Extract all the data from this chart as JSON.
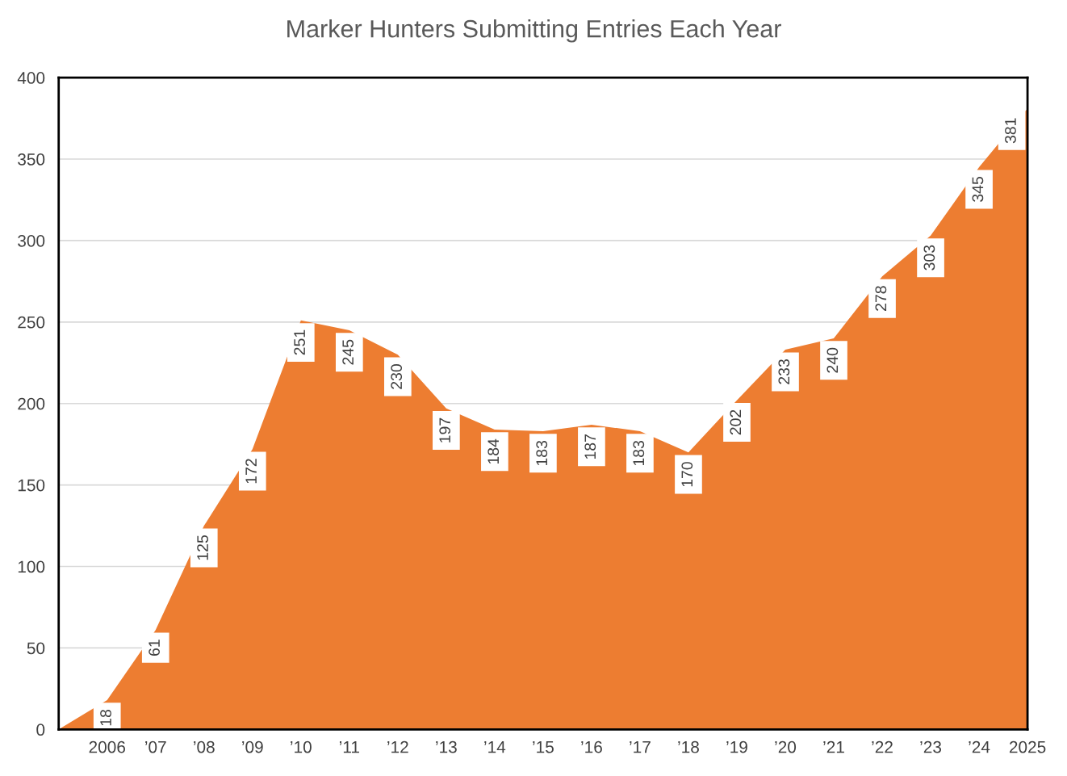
{
  "chart_data": {
    "type": "area",
    "title": "Marker Hunters Submitting Entries Each Year",
    "categories": [
      null,
      "2006",
      "’07",
      "’08",
      "’09",
      "’10",
      "’11",
      "’12",
      "’13",
      "’14",
      "’15",
      "’16",
      "’17",
      "’18",
      "’19",
      "’20",
      "’21",
      "’22",
      "’23",
      "’24",
      "2025"
    ],
    "values": [
      0,
      18,
      61,
      125,
      172,
      251,
      245,
      230,
      197,
      184,
      183,
      187,
      183,
      170,
      202,
      233,
      240,
      278,
      303,
      345,
      381
    ],
    "color": "#ed7d31",
    "ylim": [
      0,
      400
    ],
    "yticks": [
      0,
      50,
      100,
      150,
      200,
      250,
      300,
      350,
      400
    ],
    "value_labels": [
      null,
      "18",
      "61",
      "125",
      "172",
      "251",
      "245",
      "230",
      "197",
      "184",
      "183",
      "187",
      "183",
      "170",
      "202",
      "233",
      "240",
      "278",
      "303",
      "345",
      "381"
    ],
    "grid": "y"
  }
}
